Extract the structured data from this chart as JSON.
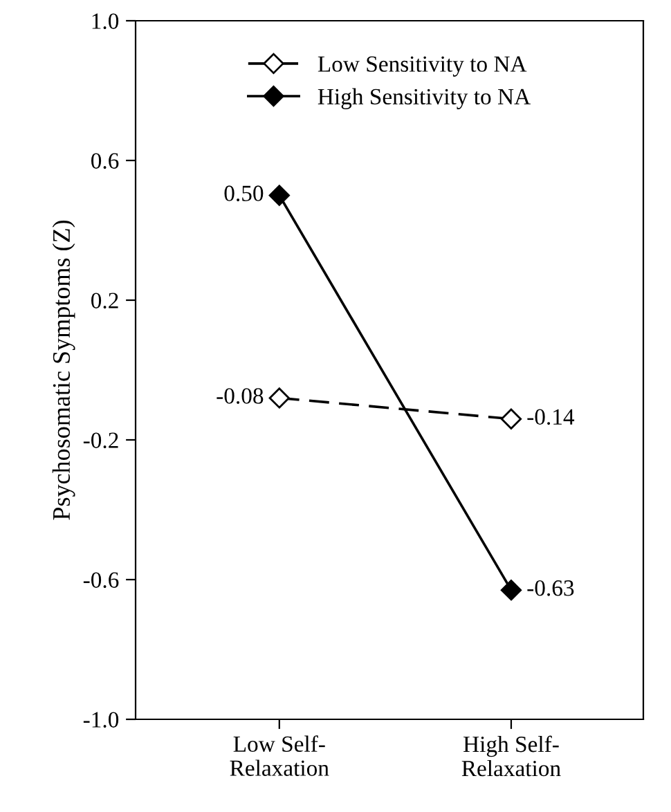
{
  "chart_data": {
    "type": "line",
    "ylabel": "Psychosomatic Symptoms (Z)",
    "categories": [
      "Low Self-\nRelaxation",
      "High Self-\nRelaxation"
    ],
    "series": [
      {
        "name": "Low Sensitivity to NA",
        "color": "#000000",
        "values": [
          -0.08,
          -0.14
        ],
        "value_labels": [
          "-0.08",
          "-0.14"
        ],
        "line_style": "dashed",
        "marker": "diamond"
      },
      {
        "name": "High Sensitivity to NA",
        "color": "#000000",
        "values": [
          0.5,
          -0.63
        ],
        "value_labels": [
          "0.50",
          "-0.63"
        ],
        "line_style": "solid",
        "marker": "diamond"
      }
    ],
    "ylim": [
      -1.0,
      1.0
    ],
    "yticks": [
      {
        "value": -1.0,
        "label": "-1.0"
      },
      {
        "value": -0.6,
        "label": "-0.6"
      },
      {
        "value": -0.2,
        "label": "-0.2"
      },
      {
        "value": 0.2,
        "label": "0.2"
      },
      {
        "value": 0.6,
        "label": "0.6"
      },
      {
        "value": 1.0,
        "label": "1.0"
      }
    ],
    "grid": false,
    "legend": "top"
  }
}
